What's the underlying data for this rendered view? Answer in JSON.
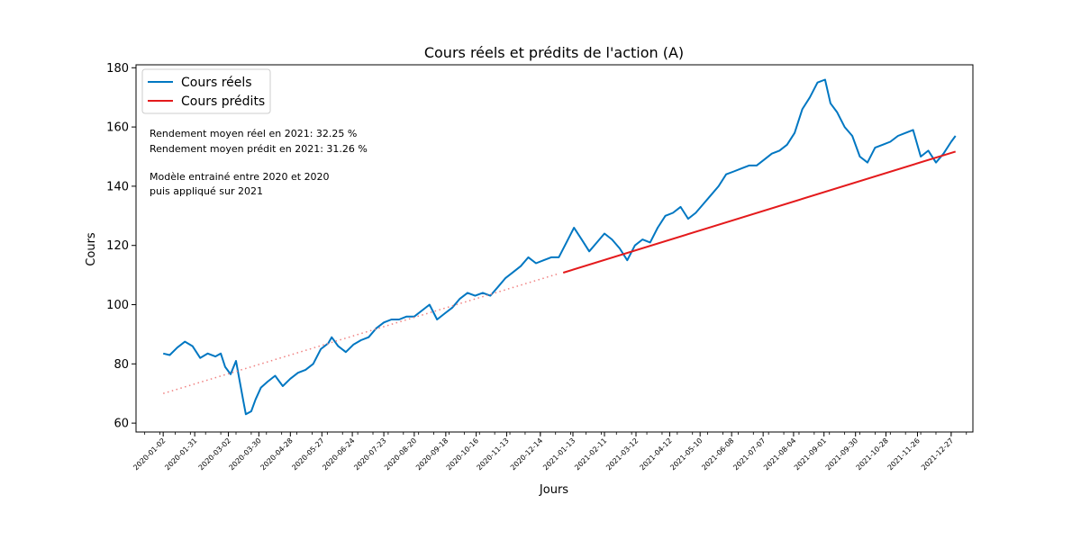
{
  "chart_data": {
    "type": "line",
    "title": "Cours réels et prédits de l'action (A)",
    "xlabel": "Jours",
    "ylabel": "Cours",
    "ylim": [
      57,
      181
    ],
    "yticks": [
      60,
      80,
      100,
      120,
      140,
      160,
      180
    ],
    "xlim": [
      "2019-12-08",
      "2022-01-16"
    ],
    "xtick_labels": [
      "2020-01-02",
      "2020-01-31",
      "2020-03-02",
      "2020-03-30",
      "2020-04-28",
      "2020-05-27",
      "2020-06-24",
      "2020-07-23",
      "2020-08-20",
      "2020-09-18",
      "2020-10-16",
      "2020-11-13",
      "2020-12-14",
      "2021-01-13",
      "2021-02-11",
      "2021-03-12",
      "2021-04-12",
      "2021-05-10",
      "2021-06-08",
      "2021-07-07",
      "2021-08-04",
      "2021-09-01",
      "2021-09-30",
      "2021-10-28",
      "2021-11-26",
      "2021-12-27"
    ],
    "legend_position": "upper-left",
    "grid": false,
    "annotations": [
      "Rendement moyen réel en 2021: 32.25 %",
      "Rendement moyen prédit en 2021: 31.26 %",
      "",
      "Modèle entrainé entre 2020 et 2020",
      "puis appliqué sur 2021"
    ],
    "series": [
      {
        "name": "Cours réels",
        "color": "#0077c2",
        "style": "solid",
        "x": [
          "2020-01-02",
          "2020-01-08",
          "2020-01-15",
          "2020-01-22",
          "2020-01-29",
          "2020-02-05",
          "2020-02-12",
          "2020-02-19",
          "2020-02-24",
          "2020-02-28",
          "2020-03-04",
          "2020-03-09",
          "2020-03-12",
          "2020-03-16",
          "2020-03-18",
          "2020-03-23",
          "2020-03-27",
          "2020-04-01",
          "2020-04-07",
          "2020-04-14",
          "2020-04-21",
          "2020-04-28",
          "2020-05-05",
          "2020-05-12",
          "2020-05-19",
          "2020-05-26",
          "2020-06-02",
          "2020-06-05",
          "2020-06-11",
          "2020-06-18",
          "2020-06-25",
          "2020-07-02",
          "2020-07-09",
          "2020-07-16",
          "2020-07-23",
          "2020-07-30",
          "2020-08-06",
          "2020-08-13",
          "2020-08-20",
          "2020-08-27",
          "2020-09-03",
          "2020-09-10",
          "2020-09-17",
          "2020-09-24",
          "2020-10-01",
          "2020-10-08",
          "2020-10-15",
          "2020-10-22",
          "2020-10-29",
          "2020-11-05",
          "2020-11-12",
          "2020-11-19",
          "2020-11-26",
          "2020-12-03",
          "2020-12-10",
          "2020-12-17",
          "2020-12-24",
          "2020-12-31",
          "2021-01-07",
          "2021-01-14",
          "2021-01-21",
          "2021-01-28",
          "2021-02-04",
          "2021-02-11",
          "2021-02-18",
          "2021-02-25",
          "2021-03-04",
          "2021-03-11",
          "2021-03-18",
          "2021-03-25",
          "2021-04-01",
          "2021-04-08",
          "2021-04-15",
          "2021-04-22",
          "2021-04-29",
          "2021-05-06",
          "2021-05-13",
          "2021-05-20",
          "2021-05-27",
          "2021-06-03",
          "2021-06-10",
          "2021-06-17",
          "2021-06-24",
          "2021-07-01",
          "2021-07-08",
          "2021-07-15",
          "2021-07-22",
          "2021-07-29",
          "2021-08-05",
          "2021-08-12",
          "2021-08-19",
          "2021-08-26",
          "2021-09-02",
          "2021-09-07",
          "2021-09-13",
          "2021-09-20",
          "2021-09-27",
          "2021-10-04",
          "2021-10-11",
          "2021-10-18",
          "2021-10-25",
          "2021-11-01",
          "2021-11-08",
          "2021-11-15",
          "2021-11-22",
          "2021-11-29",
          "2021-12-06",
          "2021-12-13",
          "2021-12-20",
          "2021-12-27",
          "2021-12-31"
        ],
        "values": [
          83.5,
          83,
          85.5,
          87.5,
          86,
          82,
          83.5,
          82.5,
          83.5,
          79,
          76.5,
          81,
          75,
          67,
          63,
          64,
          68,
          72,
          74,
          76,
          72.5,
          75,
          77,
          78,
          80,
          85,
          87,
          89,
          86,
          84,
          86.5,
          88,
          89,
          92,
          94,
          95,
          95,
          96,
          96,
          98,
          100,
          95,
          97,
          99,
          102,
          104,
          103,
          104,
          103,
          106,
          109,
          111,
          113,
          116,
          114,
          115,
          116,
          116,
          121,
          126,
          122,
          118,
          121,
          124,
          122,
          119,
          115,
          120,
          122,
          121,
          126,
          130,
          131,
          133,
          129,
          131,
          134,
          137,
          140,
          144,
          145,
          146,
          147,
          147,
          149,
          151,
          152,
          154,
          158,
          166,
          170,
          175,
          176,
          168,
          165,
          160,
          157,
          150,
          148,
          153,
          154,
          155,
          157,
          158,
          159,
          150,
          152,
          148,
          151,
          155,
          157
        ]
      },
      {
        "name": "Cours prédits",
        "color": "#e41a1c",
        "style": "solid",
        "x": [
          "2021-01-04",
          "2021-12-31"
        ],
        "values": [
          110.8,
          151.7
        ]
      },
      {
        "name": "",
        "color": "#f08080",
        "style": "dotted",
        "x": [
          "2020-01-02",
          "2020-12-31"
        ],
        "values": [
          70,
          110.5
        ]
      }
    ]
  }
}
